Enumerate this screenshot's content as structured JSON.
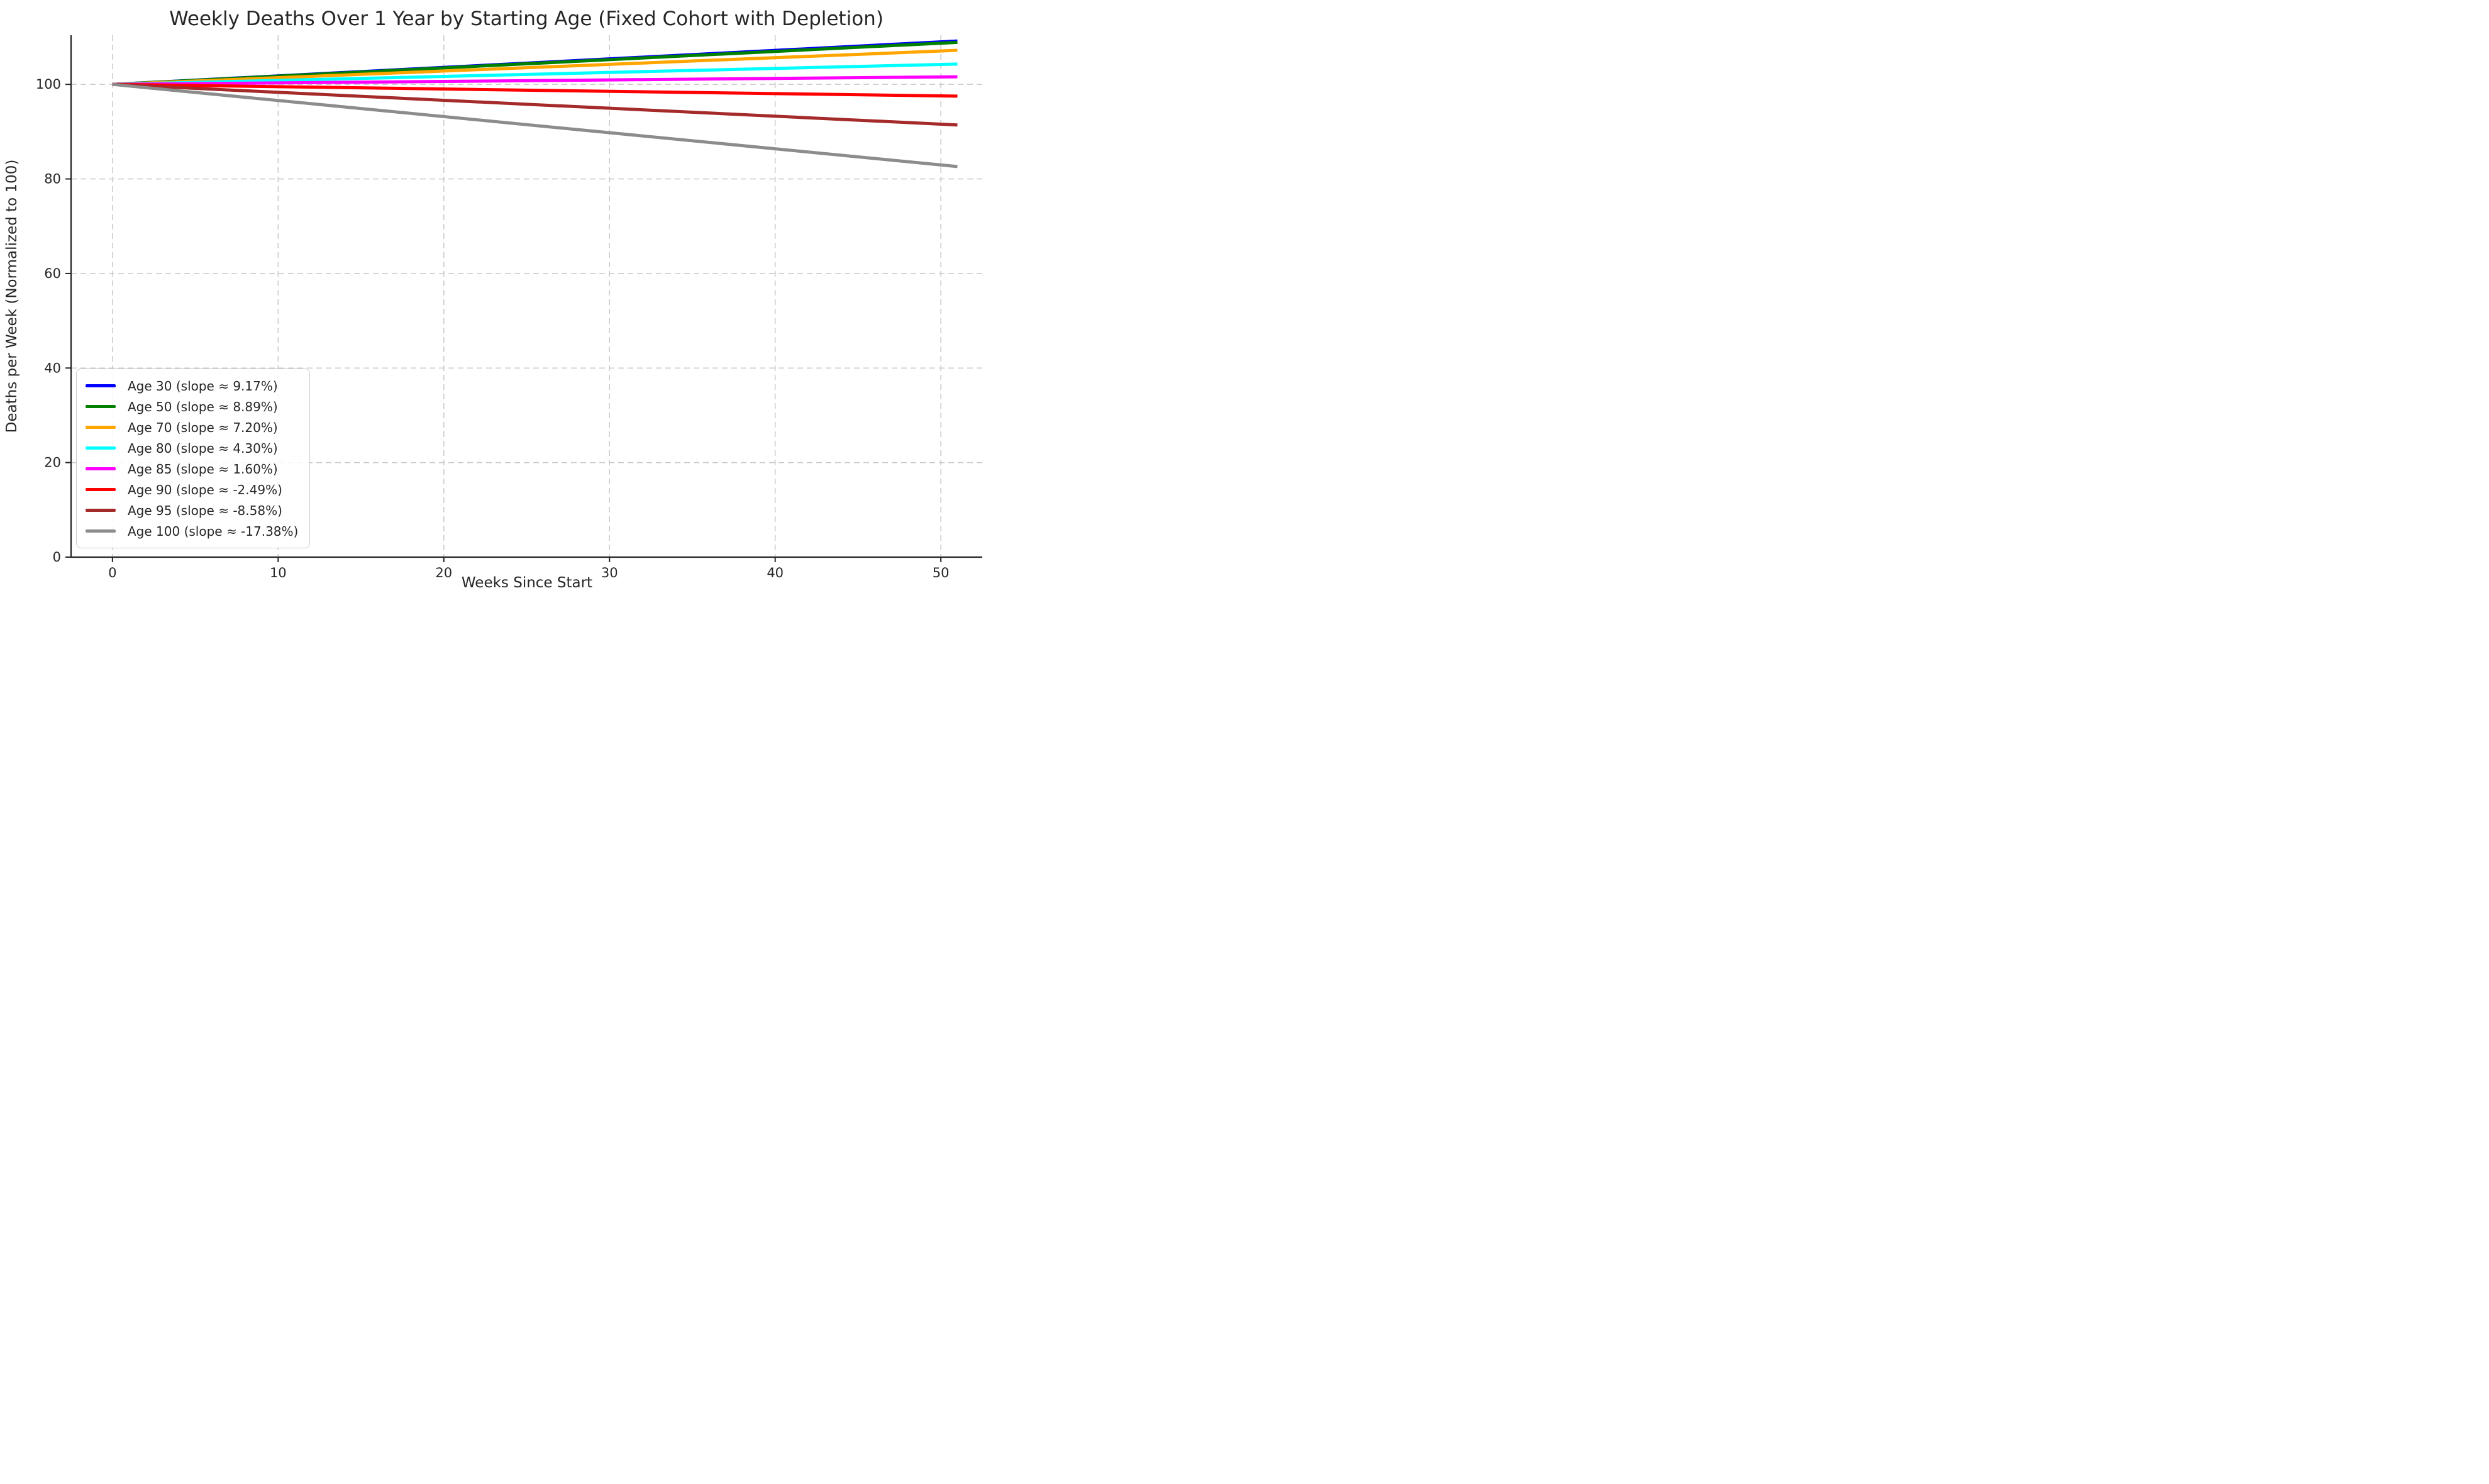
{
  "figure": {
    "background": "#ffffff",
    "text_color": "#262626",
    "spine_color": "#262626",
    "grid_color": "#cccccc",
    "legend_border_color": "#cccccc"
  },
  "chart_data": {
    "type": "line",
    "title": "Weekly Deaths Over 1 Year by Starting Age (Fixed Cohort with Depletion)",
    "xlabel": "Weeks Since Start",
    "ylabel": "Deaths per Week (Normalized to 100)",
    "xlim": [
      -2.5,
      52.5
    ],
    "ylim": [
      0,
      110.4
    ],
    "xticks": [
      0,
      10,
      20,
      30,
      40,
      50
    ],
    "yticks": [
      0,
      20,
      40,
      60,
      80,
      100
    ],
    "grid": {
      "visible": true,
      "style": "dashed",
      "color": "#cccccc"
    },
    "x_start_week": 0,
    "x_end_week": 51,
    "normalized_start_value": 100,
    "series": [
      {
        "name": "age-30",
        "label": "Age 30 (slope ≈ 9.17%)",
        "color": "#0000ff",
        "slope_pct": 9.17,
        "start": 100,
        "end": 109.17
      },
      {
        "name": "age-50",
        "label": "Age 50 (slope ≈ 8.89%)",
        "color": "#008000",
        "slope_pct": 8.89,
        "start": 100,
        "end": 108.89
      },
      {
        "name": "age-70",
        "label": "Age 70 (slope ≈ 7.20%)",
        "color": "#ffa500",
        "slope_pct": 7.2,
        "start": 100,
        "end": 107.2
      },
      {
        "name": "age-80",
        "label": "Age 80 (slope ≈ 4.30%)",
        "color": "#00ffff",
        "slope_pct": 4.3,
        "start": 100,
        "end": 104.3
      },
      {
        "name": "age-85",
        "label": "Age 85 (slope ≈ 1.60%)",
        "color": "#ff00ff",
        "slope_pct": 1.6,
        "start": 100,
        "end": 101.6
      },
      {
        "name": "age-90",
        "label": "Age 90 (slope ≈ -2.49%)",
        "color": "#ff0000",
        "slope_pct": -2.49,
        "start": 100,
        "end": 97.51
      },
      {
        "name": "age-95",
        "label": "Age 95 (slope ≈ -8.58%)",
        "color": "#a52a2a",
        "slope_pct": -8.58,
        "start": 100,
        "end": 91.42
      },
      {
        "name": "age-100",
        "label": "Age 100 (slope ≈ -17.38%)",
        "color": "#8c8c8c",
        "slope_pct": -17.38,
        "start": 100,
        "end": 82.62
      }
    ],
    "legend": {
      "position": "lower left"
    }
  }
}
